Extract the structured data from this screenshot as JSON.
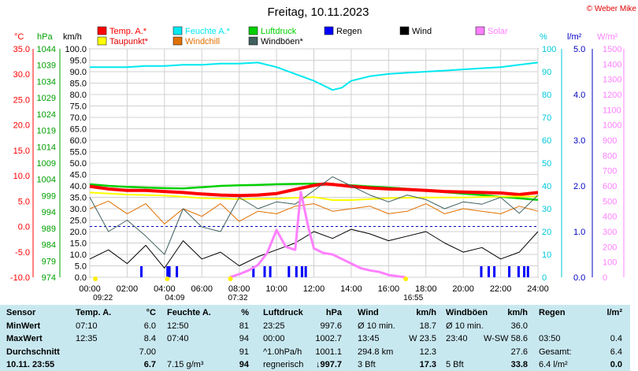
{
  "chart_data": {
    "type": "line",
    "title": "Freitag, 10.11.2023",
    "copyright": "© Weber Mike",
    "legend": [
      {
        "label": "Temp. A.*",
        "color": "#ff0000"
      },
      {
        "label": "Feuchte A.*",
        "color": "#00e8f0"
      },
      {
        "label": "Luftdruck",
        "color": "#00d000"
      },
      {
        "label": "Regen",
        "color": "#0000ff"
      },
      {
        "label": "Wind",
        "color": "#000000"
      },
      {
        "label": "Solar",
        "color": "#ff80ff"
      },
      {
        "label": "Taupunkt*",
        "color": "#ffff00"
      },
      {
        "label": "Windchill",
        "color": "#e07000"
      },
      {
        "label": "Windböen*",
        "color": "#406060"
      }
    ],
    "axes": {
      "temp": {
        "label": "°C",
        "ticks": [
          "35.0",
          "30.0",
          "25.0",
          "20.0",
          "15.0",
          "10.0",
          "5.0",
          "0.0",
          "-5.0",
          "-10.0"
        ],
        "range": [
          -10,
          35
        ],
        "color": "#ff0000"
      },
      "pressure": {
        "label": "hPa",
        "ticks": [
          "1044",
          "1039",
          "1034",
          "1029",
          "1024",
          "1019",
          "1014",
          "1009",
          "1004",
          "999",
          "994",
          "989",
          "984",
          "979",
          "974"
        ],
        "range": [
          974,
          1044
        ],
        "color": "#00a000"
      },
      "wind": {
        "label": "km/h",
        "ticks": [
          "100.0",
          "95.0",
          "90.0",
          "85.0",
          "80.0",
          "75.0",
          "70.0",
          "65.0",
          "60.0",
          "55.0",
          "50.0",
          "45.0",
          "40.0",
          "35.0",
          "30.0",
          "25.0",
          "20.0",
          "15.0",
          "10.0",
          "5.0",
          "0.0"
        ],
        "range": [
          0,
          100
        ],
        "color": "#000000"
      },
      "humidity": {
        "label": "%",
        "ticks": [
          "100",
          "90",
          "80",
          "70",
          "60",
          "50",
          "40",
          "30",
          "20",
          "10",
          "0"
        ],
        "range": [
          0,
          100
        ],
        "color": "#00c8d8"
      },
      "rain": {
        "label": "l/m²",
        "ticks": [
          "5.0",
          "4.0",
          "3.0",
          "2.0",
          "1.0",
          "0.0"
        ],
        "range": [
          0,
          5
        ],
        "color": "#0000c0"
      },
      "solar": {
        "label": "W/m²",
        "ticks": [
          "1500",
          "1400",
          "1300",
          "1200",
          "1100",
          "1000",
          "900",
          "800",
          "700",
          "600",
          "500",
          "400",
          "300",
          "200",
          "100",
          "0"
        ],
        "range": [
          0,
          1500
        ],
        "color": "#ff80ff"
      }
    },
    "x_ticks": [
      "00:00",
      "02:00",
      "04:00",
      "06:00",
      "08:00",
      "10:00",
      "12:00",
      "14:00",
      "16:00",
      "18:00",
      "20:00",
      "22:00",
      "24:00"
    ],
    "x_range_hours": [
      0,
      24
    ],
    "markers": [
      {
        "text": "09:22",
        "x": 0.3
      },
      {
        "text": "04:09",
        "x": 4.15
      },
      {
        "text": "07:32",
        "x": 7.53
      },
      {
        "text": "16:55",
        "x": 16.92
      }
    ],
    "series": [
      {
        "name": "Feuchte A.*",
        "axis": "humidity",
        "color": "#00e8f0",
        "x": [
          0,
          1,
          2,
          3,
          4,
          5,
          6,
          7,
          8,
          9,
          10,
          11,
          12,
          12.5,
          13,
          13.5,
          14,
          15,
          16,
          17,
          18,
          19,
          20,
          21,
          22,
          23,
          24
        ],
        "y": [
          92,
          92,
          92,
          92.5,
          92.5,
          93,
          93,
          93.5,
          93.5,
          94,
          92,
          89,
          86,
          84,
          82,
          83,
          86,
          88,
          89,
          89.5,
          90,
          90.5,
          91,
          91.5,
          92,
          93,
          94
        ]
      },
      {
        "name": "Luftdruck",
        "axis": "pressure",
        "color": "#00d000",
        "x": [
          0,
          1,
          2,
          3,
          4,
          5,
          6,
          7,
          8,
          9,
          10,
          11,
          12,
          13,
          14,
          15,
          16,
          17,
          18,
          19,
          20,
          21,
          22,
          23,
          24
        ],
        "y": [
          1002.5,
          1002,
          1001.7,
          1001.5,
          1001.3,
          1001.2,
          1001.6,
          1002,
          1002.2,
          1002.3,
          1002.5,
          1002.6,
          1002.7,
          1002.5,
          1002.2,
          1001.8,
          1001.5,
          1001.1,
          1000.6,
          1000.1,
          999.6,
          999.2,
          998.7,
          998.2,
          997.7
        ]
      },
      {
        "name": "Temp. A.*",
        "axis": "temp",
        "color": "#ff0000",
        "x": [
          0,
          1,
          2,
          3,
          4,
          5,
          6,
          7,
          8,
          9,
          10,
          11,
          12,
          12.6,
          13,
          14,
          15,
          16,
          17,
          18,
          19,
          20,
          21,
          22,
          23,
          24
        ],
        "y": [
          7.9,
          7.4,
          7.1,
          7.1,
          6.9,
          6.7,
          6.4,
          6.2,
          6.1,
          6.2,
          6.5,
          7.3,
          8.1,
          8.4,
          8.3,
          7.9,
          7.6,
          7.4,
          7.3,
          7.1,
          6.9,
          6.8,
          6.7,
          6.6,
          6.3,
          6.7
        ]
      },
      {
        "name": "Taupunkt*",
        "axis": "temp",
        "color": "#ffff00",
        "x": [
          0,
          2,
          4,
          6,
          8,
          10,
          12,
          13,
          14,
          16,
          18,
          20,
          22,
          24
        ],
        "y": [
          6.7,
          6.3,
          6.1,
          5.6,
          5.4,
          5.5,
          5.8,
          5.2,
          5.2,
          5.6,
          5.7,
          5.7,
          5.9,
          5.9
        ]
      },
      {
        "name": "Windchill",
        "axis": "temp",
        "color": "#e07000",
        "x": [
          0,
          1,
          2,
          3,
          4,
          5,
          6,
          7,
          8,
          9,
          10,
          11,
          12,
          13,
          14,
          15,
          16,
          17,
          18,
          19,
          20,
          21,
          22,
          23,
          24
        ],
        "y": [
          3.5,
          5,
          2.5,
          4.5,
          0.5,
          3.5,
          2,
          4.5,
          1,
          3,
          2.5,
          4,
          4.5,
          3,
          3.5,
          4,
          2.5,
          3,
          4.5,
          2.5,
          3.5,
          3,
          2.5,
          4,
          3
        ]
      },
      {
        "name": "Windböen*",
        "axis": "wind",
        "color": "#406060",
        "x": [
          0,
          1,
          2,
          3,
          4,
          5,
          6,
          7,
          8,
          9,
          10,
          11,
          12,
          13,
          14,
          15,
          16,
          17,
          18,
          19,
          20,
          21,
          22,
          23,
          24
        ],
        "y": [
          35,
          20,
          25,
          18,
          10,
          30,
          22,
          20,
          35,
          30,
          33,
          32,
          38,
          44,
          40,
          36,
          33,
          36,
          34,
          30,
          33,
          32,
          35,
          28,
          36
        ]
      },
      {
        "name": "Wind",
        "axis": "wind",
        "color": "#000000",
        "x": [
          0,
          1,
          2,
          3,
          4,
          5,
          6,
          7,
          8,
          9,
          10,
          11,
          12,
          13,
          14,
          15,
          16,
          17,
          18,
          19,
          20,
          21,
          22,
          23,
          24
        ],
        "y": [
          8,
          12,
          6,
          14,
          4,
          16,
          8,
          11,
          5,
          9,
          12,
          15,
          20,
          17,
          21,
          19,
          16,
          18,
          20,
          15,
          11,
          13,
          8,
          11,
          20
        ]
      },
      {
        "name": "Solar",
        "axis": "solar",
        "color": "#ff80ff",
        "x": [
          7.5,
          8,
          8.5,
          9,
          9.5,
          10,
          10.5,
          11,
          11.3,
          11.7,
          12,
          12.5,
          13,
          13.5,
          14,
          14.5,
          15,
          15.5,
          16,
          16.9
        ],
        "y": [
          0,
          20,
          45,
          80,
          160,
          310,
          200,
          180,
          560,
          330,
          190,
          160,
          150,
          120,
          90,
          60,
          45,
          35,
          15,
          0
        ]
      }
    ],
    "rain_bars_hours": [
      2.7,
      4.1,
      4.2,
      4.6,
      8.7,
      9.3,
      9.6,
      10.6,
      11.0,
      11.3,
      11.5,
      20.9,
      21.3,
      21.6,
      22.4,
      22.9,
      23.2,
      23.4
    ],
    "table": {
      "headers": [
        "Sensor",
        "Temp. A.",
        "°C",
        "Feuchte A.",
        "%",
        "Luftdruck",
        "hPa",
        "Wind",
        "km/h",
        "Windböen",
        "km/h",
        "Regen",
        "l/m²"
      ],
      "rows": [
        [
          "MinWert",
          "07:10",
          "6.0",
          "12:50",
          "81",
          "23:25",
          "997.6",
          "Ø 10 min.",
          "18.7",
          "Ø 10 min.",
          "36.0",
          "",
          ""
        ],
        [
          "MaxWert",
          "12:35",
          "8.4",
          "07:40",
          "94",
          "00:00",
          "1002.7",
          "13:45",
          "W 23.5",
          "23:40",
          "W-SW 58.6",
          "03:50",
          "0.4"
        ],
        [
          "Durchschnitt",
          "",
          "7.00",
          "",
          "91",
          "^1.0hPa/h",
          "1001.1",
          "294.8 km",
          "12.3",
          "",
          "27.6",
          "Gesamt:",
          "6.4"
        ],
        [
          "10.11. 23:55",
          "",
          "6.7",
          "7.15 g/m³",
          "94",
          "regnerisch",
          "↓997.7",
          "3 Bft",
          "17.3",
          "5 Bft",
          "33.8",
          "6.4 l/m²",
          "0.0"
        ]
      ]
    }
  }
}
